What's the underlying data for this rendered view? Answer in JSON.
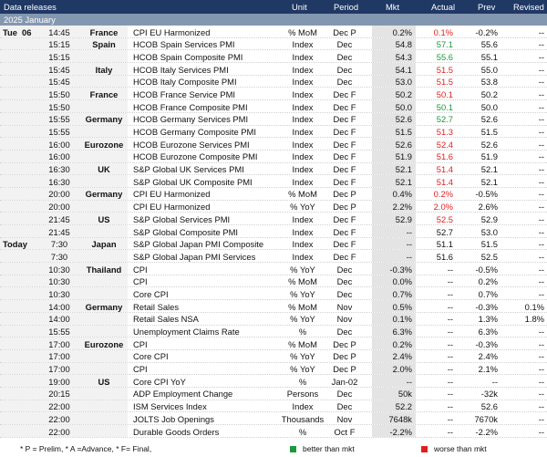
{
  "header": {
    "title": "Data releases",
    "month": "2025 January",
    "columns": [
      "Unit",
      "Period",
      "Mkt",
      "Actual",
      "Prev",
      "Revised"
    ]
  },
  "tones": {
    "better": "#1a9a3a",
    "worse": "#e02020"
  },
  "rows": [
    {
      "day": "Tue",
      "date": "06",
      "time": "14:45",
      "country": "France",
      "event": "CPI EU Harmonized",
      "unit": "% MoM",
      "period": "Dec P",
      "mkt": "0.2%",
      "actual": "0.1%",
      "tone": "worse",
      "prev": "-0.2%",
      "revised": "--"
    },
    {
      "time": "15:15",
      "country": "Spain",
      "event": "HCOB Spain Services PMI",
      "unit": "Index",
      "period": "Dec",
      "mkt": "54.8",
      "actual": "57.1",
      "tone": "better",
      "prev": "55.6",
      "revised": "--"
    },
    {
      "time": "15:15",
      "event": "HCOB Spain Composite PMI",
      "unit": "Index",
      "period": "Dec",
      "mkt": "54.3",
      "actual": "55.6",
      "tone": "better",
      "prev": "55.1",
      "revised": "--"
    },
    {
      "time": "15:45",
      "country": "Italy",
      "event": "HCOB Italy Services PMI",
      "unit": "Index",
      "period": "Dec",
      "mkt": "54.1",
      "actual": "51.5",
      "tone": "worse",
      "prev": "55.0",
      "revised": "--"
    },
    {
      "time": "15:45",
      "event": "HCOB Italy Composite PMI",
      "unit": "Index",
      "period": "Dec",
      "mkt": "53.0",
      "actual": "51.5",
      "tone": "worse",
      "prev": "53.8",
      "revised": "--"
    },
    {
      "time": "15:50",
      "country": "France",
      "event": "HCOB France Service PMI",
      "unit": "Index",
      "period": "Dec F",
      "mkt": "50.2",
      "actual": "50.1",
      "tone": "worse",
      "prev": "50.2",
      "revised": "--"
    },
    {
      "time": "15:50",
      "event": "HCOB France Composite PMI",
      "unit": "Index",
      "period": "Dec F",
      "mkt": "50.0",
      "actual": "50.1",
      "tone": "better",
      "prev": "50.0",
      "revised": "--"
    },
    {
      "time": "15:55",
      "country": "Germany",
      "event": "HCOB Germany Services PMI",
      "unit": "Index",
      "period": "Dec F",
      "mkt": "52.6",
      "actual": "52.7",
      "tone": "better",
      "prev": "52.6",
      "revised": "--"
    },
    {
      "time": "15:55",
      "event": "HCOB Germany Composite PMI",
      "unit": "Index",
      "period": "Dec F",
      "mkt": "51.5",
      "actual": "51.3",
      "tone": "worse",
      "prev": "51.5",
      "revised": "--"
    },
    {
      "time": "16:00",
      "country": "Eurozone",
      "event": "HCOB Eurozone Services PMI",
      "unit": "Index",
      "period": "Dec F",
      "mkt": "52.6",
      "actual": "52.4",
      "tone": "worse",
      "prev": "52.6",
      "revised": "--"
    },
    {
      "time": "16:00",
      "event": "HCOB Eurozone Composite PMI",
      "unit": "Index",
      "period": "Dec F",
      "mkt": "51.9",
      "actual": "51.6",
      "tone": "worse",
      "prev": "51.9",
      "revised": "--"
    },
    {
      "time": "16:30",
      "country": "UK",
      "event": "S&P Global UK Services PMI",
      "unit": "Index",
      "period": "Dec F",
      "mkt": "52.1",
      "actual": "51.4",
      "tone": "worse",
      "prev": "52.1",
      "revised": "--"
    },
    {
      "time": "16:30",
      "event": "S&P Global UK Composite PMI",
      "unit": "Index",
      "period": "Dec F",
      "mkt": "52.1",
      "actual": "51.4",
      "tone": "worse",
      "prev": "52.1",
      "revised": "--"
    },
    {
      "time": "20:00",
      "country": "Germany",
      "event": "CPI EU Harmonized",
      "unit": "% MoM",
      "period": "Dec P",
      "mkt": "0.4%",
      "actual": "0.2%",
      "tone": "worse",
      "prev": "-0.5%",
      "revised": "--"
    },
    {
      "time": "20:00",
      "event": "CPI EU Harmonized",
      "unit": "% YoY",
      "period": "Dec P",
      "mkt": "2.2%",
      "actual": "2.0%",
      "tone": "worse",
      "prev": "2.6%",
      "revised": "--"
    },
    {
      "time": "21:45",
      "country": "US",
      "event": "S&P Global Services PMI",
      "unit": "Index",
      "period": "Dec F",
      "mkt": "52.9",
      "actual": "52.5",
      "tone": "worse",
      "prev": "52.9",
      "revised": "--"
    },
    {
      "time": "21:45",
      "event": "S&P Global Composite PMI",
      "unit": "Index",
      "period": "Dec F",
      "mkt": "--",
      "actual": "52.7",
      "prev": "53.0",
      "revised": "--"
    },
    {
      "day": "Today",
      "time": "7:30",
      "country": "Japan",
      "event": "S&P Global Japan PMI Composite",
      "unit": "Index",
      "period": "Dec F",
      "mkt": "--",
      "actual": "51.1",
      "prev": "51.5",
      "revised": "--"
    },
    {
      "time": "7:30",
      "event": "S&P Global Japan PMI Services",
      "unit": "Index",
      "period": "Dec F",
      "mkt": "--",
      "actual": "51.6",
      "prev": "52.5",
      "revised": "--"
    },
    {
      "time": "10:30",
      "country": "Thailand",
      "event": "CPI",
      "unit": "% YoY",
      "period": "Dec",
      "mkt": "-0.3%",
      "actual": "--",
      "prev": "-0.5%",
      "revised": "--"
    },
    {
      "time": "10:30",
      "event": "CPI",
      "unit": "% MoM",
      "period": "Dec",
      "mkt": "0.0%",
      "actual": "--",
      "prev": "0.2%",
      "revised": "--"
    },
    {
      "time": "10:30",
      "event": "Core CPI",
      "unit": "% YoY",
      "period": "Dec",
      "mkt": "0.7%",
      "actual": "--",
      "prev": "0.7%",
      "revised": "--"
    },
    {
      "time": "14:00",
      "country": "Germany",
      "event": "Retail Sales",
      "unit": "% MoM",
      "period": "Nov",
      "mkt": "0.5%",
      "actual": "--",
      "prev": "-0.3%",
      "revised": "0.1%"
    },
    {
      "time": "14:00",
      "event": "Retail Sales NSA",
      "unit": "% YoY",
      "period": "Nov",
      "mkt": "0.1%",
      "actual": "--",
      "prev": "1.3%",
      "revised": "1.8%"
    },
    {
      "time": "15:55",
      "event": "Unemployment Claims Rate",
      "unit": "%",
      "period": "Dec",
      "mkt": "6.3%",
      "actual": "--",
      "prev": "6.3%",
      "revised": "--"
    },
    {
      "time": "17:00",
      "country": "Eurozone",
      "event": "CPI",
      "unit": "% MoM",
      "period": "Dec P",
      "mkt": "0.2%",
      "actual": "--",
      "prev": "-0.3%",
      "revised": "--"
    },
    {
      "time": "17:00",
      "event": "Core CPI",
      "unit": "% YoY",
      "period": "Dec P",
      "mkt": "2.4%",
      "actual": "--",
      "prev": "2.4%",
      "revised": "--"
    },
    {
      "time": "17:00",
      "event": "CPI",
      "unit": "% YoY",
      "period": "Dec P",
      "mkt": "2.0%",
      "actual": "--",
      "prev": "2.1%",
      "revised": "--"
    },
    {
      "time": "19:00",
      "country": "US",
      "event": "Core CPI YoY",
      "unit": "%",
      "period": "Jan-02",
      "mkt": "--",
      "actual": "--",
      "prev": "--",
      "revised": "--"
    },
    {
      "time": "20:15",
      "event": "ADP Employment Change",
      "unit": "Persons",
      "period": "Dec",
      "mkt": "50k",
      "actual": "--",
      "prev": "-32k",
      "revised": "--"
    },
    {
      "time": "22:00",
      "event": "ISM Services Index",
      "unit": "Index",
      "period": "Dec",
      "mkt": "52.2",
      "actual": "--",
      "prev": "52.6",
      "revised": "--"
    },
    {
      "time": "22:00",
      "event": "JOLTS Job Openings",
      "unit": "Thousands",
      "period": "Nov",
      "mkt": "7648k",
      "actual": "--",
      "prev": "7670k",
      "revised": "--"
    },
    {
      "time": "22:00",
      "event": "Durable Goods Orders",
      "unit": "%",
      "period": "Oct F",
      "mkt": "-2.2%",
      "actual": "--",
      "prev": "-2.2%",
      "revised": "--"
    }
  ],
  "footer": {
    "note": "* P = Prelim, * A =Advance, * F= Final,",
    "better": "better than mkt",
    "worse": "worse than mkt"
  }
}
